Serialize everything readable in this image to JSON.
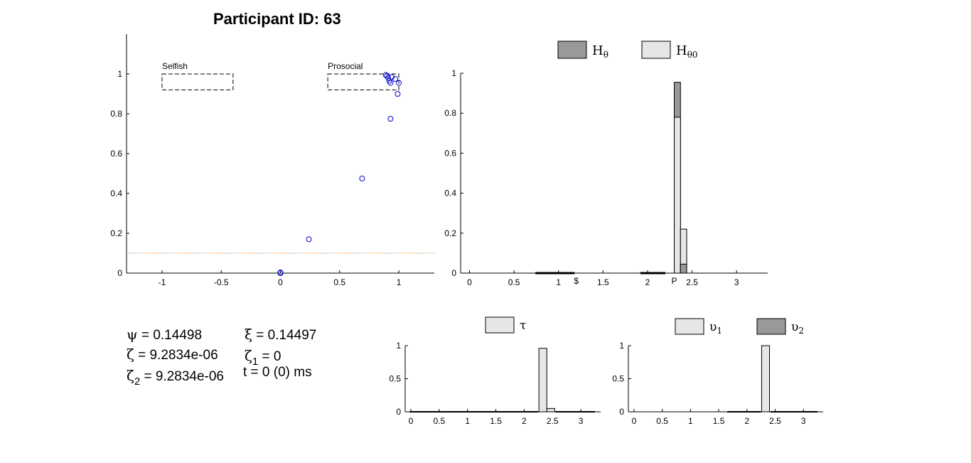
{
  "figure_title": "Participant ID: 63",
  "stats": {
    "psi": {
      "symbol": "ψ",
      "text": " = 0.14498"
    },
    "xi": {
      "symbol": "ξ",
      "text": " = 0.14497"
    },
    "zeta": {
      "symbol": "ζ",
      "text": " = 9.2834e-06"
    },
    "zeta1": {
      "symbol": "ζ",
      "sub": "1",
      "text": " = 0"
    },
    "zeta2": {
      "symbol": "ζ",
      "sub": "2",
      "text": " = 9.2834e-06"
    },
    "time": "t = 0 (0) ms"
  },
  "colors": {
    "dark_bar": "#999999",
    "light_bar": "#e6e6e6",
    "scatter_marker": "#0000cc",
    "threshold_line": "#cc6600"
  },
  "chart_data": [
    {
      "id": "scatter",
      "type": "scatter",
      "title": "",
      "xlabel": "",
      "ylabel": "",
      "xlim": [
        -1.3,
        1.3
      ],
      "ylim": [
        0,
        1.2
      ],
      "xticks": [
        -1,
        -0.5,
        0,
        0.5,
        1
      ],
      "xtick_labels": [
        "-1",
        "-0.5",
        "0",
        "0.5",
        "1"
      ],
      "yticks": [
        0,
        0.2,
        0.4,
        0.6,
        0.8,
        1
      ],
      "ytick_labels": [
        "0",
        "0.2",
        "0.4",
        "0.6",
        "0.8",
        "1"
      ],
      "points": [
        {
          "x": 0.0,
          "y": 0.0
        },
        {
          "x": 0.0,
          "y": 0.003
        },
        {
          "x": 0.24,
          "y": 0.17
        },
        {
          "x": 0.69,
          "y": 0.475
        },
        {
          "x": 0.93,
          "y": 0.775
        },
        {
          "x": 0.99,
          "y": 0.9
        },
        {
          "x": 1.0,
          "y": 0.955
        },
        {
          "x": 0.93,
          "y": 0.955
        },
        {
          "x": 0.92,
          "y": 0.965
        },
        {
          "x": 0.97,
          "y": 0.975
        },
        {
          "x": 0.91,
          "y": 0.98
        },
        {
          "x": 0.94,
          "y": 0.985
        },
        {
          "x": 0.9,
          "y": 0.99
        },
        {
          "x": 0.89,
          "y": 0.995
        }
      ],
      "reference_line_y": 0.1,
      "regions": [
        {
          "label": "Selfish",
          "x0": -1.0,
          "x1": -0.4,
          "y0": 0.92,
          "y1": 1.0
        },
        {
          "label": "Prosocial",
          "x0": 0.4,
          "x1": 1.0,
          "y0": 0.92,
          "y1": 1.0
        }
      ]
    },
    {
      "id": "theta_hist",
      "type": "bar",
      "title": "",
      "xlim": [
        -0.1,
        3.35
      ],
      "ylim": [
        0,
        1
      ],
      "xticks": [
        0,
        0.5,
        1,
        1.5,
        2,
        2.5,
        3
      ],
      "xtick_labels": [
        "0",
        "0.5",
        "1",
        "1.5",
        "2",
        "2.5",
        "3"
      ],
      "yticks": [
        0,
        0.2,
        0.4,
        0.6,
        0.8,
        1
      ],
      "ytick_labels": [
        "0",
        "0.2",
        "0.4",
        "0.6",
        "0.8",
        "1"
      ],
      "bin_width": 0.07,
      "legend": [
        {
          "label": "H",
          "sub": "θ",
          "color": "#999999"
        },
        {
          "label": "H",
          "sub": "θ0",
          "color": "#e6e6e6"
        }
      ],
      "bars": [
        {
          "x": 2.335,
          "values": [
            0.955,
            0.78
          ]
        },
        {
          "x": 2.405,
          "values": [
            0.045,
            0.22
          ]
        }
      ],
      "markers": [
        {
          "label": "$",
          "x": 0.96,
          "half_width": 0.22
        },
        {
          "label": "P",
          "x": 2.06,
          "half_width": 0.14
        }
      ]
    },
    {
      "id": "tau_hist",
      "type": "bar",
      "xlim": [
        -0.1,
        3.35
      ],
      "ylim": [
        0,
        1
      ],
      "xticks": [
        0,
        0.5,
        1,
        1.5,
        2,
        2.5,
        3
      ],
      "xtick_labels": [
        "0",
        "0.5",
        "1",
        "1.5",
        "2",
        "2.5",
        "3"
      ],
      "yticks": [
        0,
        0.5,
        1
      ],
      "ytick_labels": [
        "0",
        "0.5",
        "1"
      ],
      "bin_width": 0.14,
      "legend": [
        {
          "label": "τ",
          "sub": "",
          "color": "#e6e6e6"
        }
      ],
      "bars": [
        {
          "x": 2.33,
          "values": [
            0.96
          ]
        },
        {
          "x": 2.47,
          "values": [
            0.05
          ]
        }
      ]
    },
    {
      "id": "upsilon_hist",
      "type": "bar",
      "xlim": [
        -0.1,
        3.35
      ],
      "ylim": [
        0,
        1
      ],
      "xticks": [
        0,
        0.5,
        1,
        1.5,
        2,
        2.5,
        3
      ],
      "xtick_labels": [
        "0",
        "0.5",
        "1",
        "1.5",
        "2",
        "2.5",
        "3"
      ],
      "yticks": [
        0,
        0.5,
        1
      ],
      "ytick_labels": [
        "0",
        "0.5",
        "1"
      ],
      "bin_width": 0.14,
      "legend": [
        {
          "label": "υ",
          "sub": "1",
          "color": "#e6e6e6"
        },
        {
          "label": "υ",
          "sub": "2",
          "color": "#999999"
        }
      ],
      "bars": [
        {
          "x": 2.33,
          "values": [
            1.0,
            0.0
          ]
        }
      ]
    }
  ]
}
